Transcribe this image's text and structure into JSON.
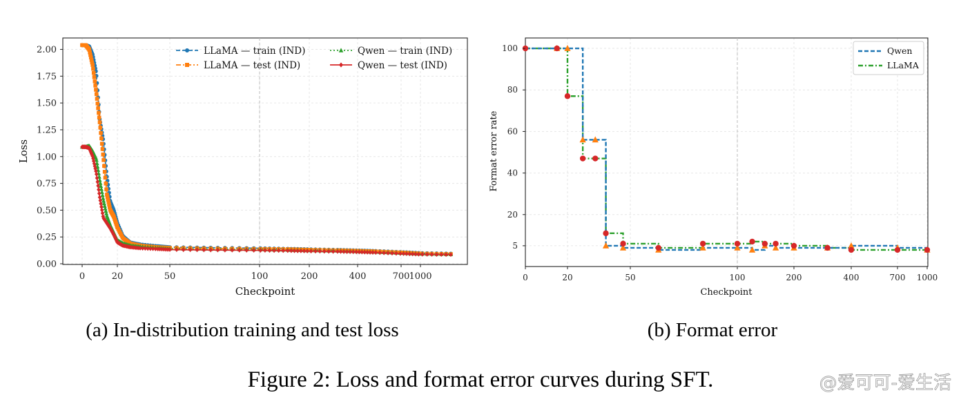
{
  "caption": "Figure 2: Loss and format error curves during SFT.",
  "watermark": "@爱可可-爱生活",
  "chart_data": [
    {
      "type": "line",
      "panel_caption": "(a) In-distribution training and test loss",
      "xlabel": "Checkpoint",
      "ylabel": "Loss",
      "x_ticks": [
        "0",
        "20",
        "50",
        "100",
        "200",
        "400",
        "700",
        "1000"
      ],
      "y_ticks": [
        "0.00",
        "0.25",
        "0.50",
        "0.75",
        "1.00",
        "1.25",
        "1.50",
        "1.75",
        "2.00"
      ],
      "ylim": [
        0,
        2.1
      ],
      "grid": true,
      "legend_position": "top-right",
      "x": [
        0,
        2,
        4,
        6,
        8,
        10,
        12,
        14,
        16,
        18,
        20,
        22,
        25,
        30,
        40,
        50,
        70,
        100,
        150,
        200,
        300,
        400,
        500,
        700,
        1000,
        1300
      ],
      "series": [
        {
          "name": "LLaMA — train (IND)",
          "color": "#1f77b4",
          "style": "dashed",
          "marker": "circle",
          "values": [
            2.04,
            2.04,
            2.03,
            1.95,
            1.78,
            1.35,
            1.15,
            0.82,
            0.58,
            0.5,
            0.38,
            0.26,
            0.2,
            0.18,
            0.165,
            0.155,
            0.15,
            0.145,
            0.14,
            0.135,
            0.13,
            0.125,
            0.12,
            0.11,
            0.1,
            0.095
          ]
        },
        {
          "name": "LLaMA — test (IND)",
          "color": "#ff7f0e",
          "style": "dashdot",
          "marker": "square",
          "values": [
            2.04,
            2.04,
            2.0,
            1.85,
            1.6,
            1.32,
            1.0,
            0.65,
            0.5,
            0.44,
            0.34,
            0.24,
            0.19,
            0.17,
            0.155,
            0.148,
            0.142,
            0.138,
            0.135,
            0.13,
            0.125,
            0.12,
            0.115,
            0.105,
            0.095,
            0.09
          ]
        },
        {
          "name": "Qwen — train (IND)",
          "color": "#2ca02c",
          "style": "dotted",
          "marker": "triangle",
          "values": [
            1.09,
            1.09,
            1.1,
            1.05,
            0.98,
            0.78,
            0.6,
            0.45,
            0.36,
            0.29,
            0.22,
            0.19,
            0.17,
            0.16,
            0.148,
            0.14,
            0.135,
            0.132,
            0.128,
            0.124,
            0.12,
            0.115,
            0.11,
            0.1,
            0.092,
            0.088
          ]
        },
        {
          "name": "Qwen — test (IND)",
          "color": "#d62728",
          "style": "solid",
          "marker": "diamond",
          "values": [
            1.09,
            1.09,
            1.08,
            1.0,
            0.85,
            0.62,
            0.43,
            0.38,
            0.33,
            0.27,
            0.2,
            0.17,
            0.155,
            0.145,
            0.138,
            0.132,
            0.128,
            0.125,
            0.122,
            0.118,
            0.114,
            0.11,
            0.105,
            0.095,
            0.088,
            0.085
          ]
        }
      ]
    },
    {
      "type": "line",
      "panel_caption": "(b) Format error",
      "xlabel": "Checkpoint",
      "ylabel": "Format error rate",
      "x_ticks": [
        "0",
        "20",
        "50",
        "100",
        "200",
        "400",
        "700",
        "1000"
      ],
      "y_ticks": [
        "5",
        "20",
        "40",
        "60",
        "80",
        "100"
      ],
      "ylim": [
        -5,
        105
      ],
      "grid": true,
      "legend_position": "top-right",
      "series": [
        {
          "name": "Qwen",
          "color": "#1f77b4",
          "style": "dashed",
          "marker": "triangle",
          "step": true,
          "x": [
            0,
            15,
            20,
            25,
            30,
            35,
            45,
            60,
            80,
            100,
            120,
            140,
            160,
            200,
            300,
            400,
            700,
            1000
          ],
          "values": [
            100,
            100,
            100,
            56,
            56,
            5,
            4,
            3,
            4,
            4,
            3,
            5,
            4,
            4,
            4,
            5,
            4,
            3
          ]
        },
        {
          "name": "LLaMA",
          "color": "#2ca02c",
          "style": "dashdot",
          "marker": "circle",
          "step": true,
          "x": [
            0,
            15,
            20,
            25,
            30,
            35,
            45,
            60,
            80,
            100,
            120,
            140,
            160,
            200,
            300,
            400,
            700,
            1000
          ],
          "values": [
            100,
            100,
            77,
            47,
            47,
            11,
            6,
            4,
            6,
            6,
            7,
            6,
            6,
            5,
            4,
            3,
            3,
            3
          ]
        }
      ]
    }
  ]
}
